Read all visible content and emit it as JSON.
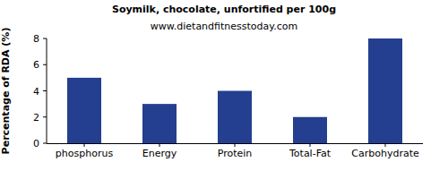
{
  "chart_data": {
    "type": "bar",
    "title": "Soymilk, chocolate, unfortified per 100g",
    "subtitle": "www.dietandfitnesstoday.com",
    "ylabel": "Percentage of RDA (%)",
    "categories": [
      "phosphorus",
      "Energy",
      "Protein",
      "Total-Fat",
      "Carbohydrate"
    ],
    "values": [
      5,
      3,
      4,
      2,
      8
    ],
    "color": "#243f8f",
    "ylim": [
      0,
      8
    ],
    "yticks": [
      0,
      2,
      4,
      6,
      8
    ],
    "grid": false
  }
}
